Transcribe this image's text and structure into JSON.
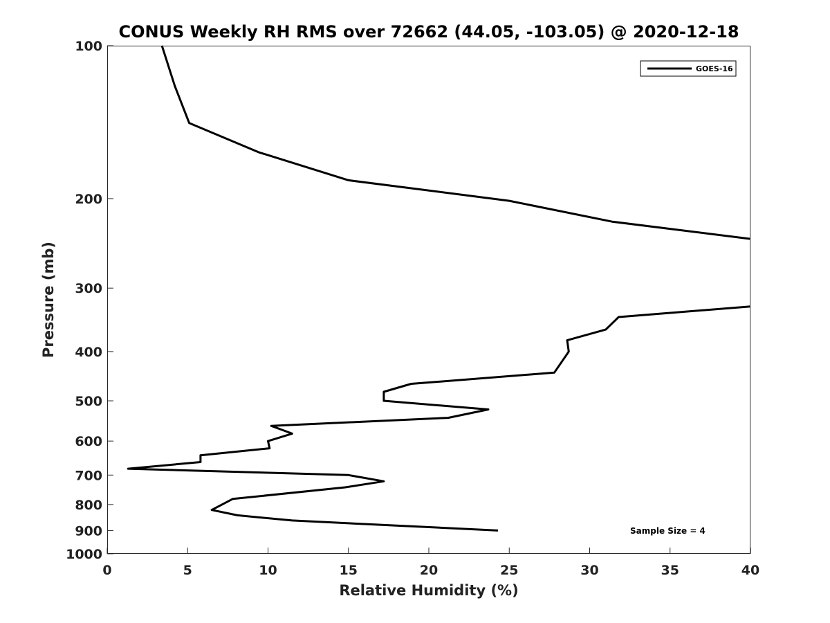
{
  "chart_data": {
    "type": "line",
    "title": "CONUS Weekly RH RMS over 72662 (44.05, -103.05) @ 2020-12-18",
    "xlabel": "Relative Humidity (%)",
    "ylabel": "Pressure (mb)",
    "xlim": [
      0,
      40
    ],
    "ylim": [
      100,
      1000
    ],
    "y_scale": "log",
    "y_reversed": true,
    "grid": false,
    "x_ticks": [
      "0",
      "5",
      "10",
      "15",
      "20",
      "25",
      "30",
      "35",
      "40"
    ],
    "y_ticks": [
      "100",
      "200",
      "300",
      "400",
      "500",
      "600",
      "700",
      "800",
      "900",
      "1000"
    ],
    "legend": {
      "placement": "top-right",
      "entries": [
        "GOES-16"
      ]
    },
    "annotation": "Sample Size = 4",
    "series": [
      {
        "name": "GOES-16",
        "color": "#000000",
        "segments": [
          [
            {
              "x": 3.4,
              "y": 100
            },
            {
              "x": 4.2,
              "y": 120
            },
            {
              "x": 5.1,
              "y": 142
            },
            {
              "x": 9.4,
              "y": 162
            },
            {
              "x": 15.0,
              "y": 184
            },
            {
              "x": 25.0,
              "y": 202
            },
            {
              "x": 31.4,
              "y": 222
            },
            {
              "x": 40.0,
              "y": 240
            }
          ],
          [
            {
              "x": 40.0,
              "y": 326
            },
            {
              "x": 31.8,
              "y": 342
            },
            {
              "x": 31.0,
              "y": 362
            },
            {
              "x": 28.6,
              "y": 380
            },
            {
              "x": 28.7,
              "y": 400
            },
            {
              "x": 27.8,
              "y": 440
            },
            {
              "x": 18.9,
              "y": 463
            },
            {
              "x": 17.2,
              "y": 480
            },
            {
              "x": 17.2,
              "y": 500
            },
            {
              "x": 23.7,
              "y": 520
            },
            {
              "x": 21.2,
              "y": 540
            },
            {
              "x": 10.2,
              "y": 560
            },
            {
              "x": 11.5,
              "y": 580
            },
            {
              "x": 10.0,
              "y": 600
            },
            {
              "x": 10.1,
              "y": 620
            },
            {
              "x": 5.8,
              "y": 640
            },
            {
              "x": 5.8,
              "y": 660
            },
            {
              "x": 1.3,
              "y": 680
            },
            {
              "x": 15.0,
              "y": 700
            },
            {
              "x": 17.2,
              "y": 720
            },
            {
              "x": 14.8,
              "y": 740
            },
            {
              "x": 7.8,
              "y": 780
            },
            {
              "x": 6.5,
              "y": 820
            },
            {
              "x": 8.1,
              "y": 840
            },
            {
              "x": 11.5,
              "y": 860
            },
            {
              "x": 24.3,
              "y": 900
            }
          ]
        ]
      }
    ]
  }
}
